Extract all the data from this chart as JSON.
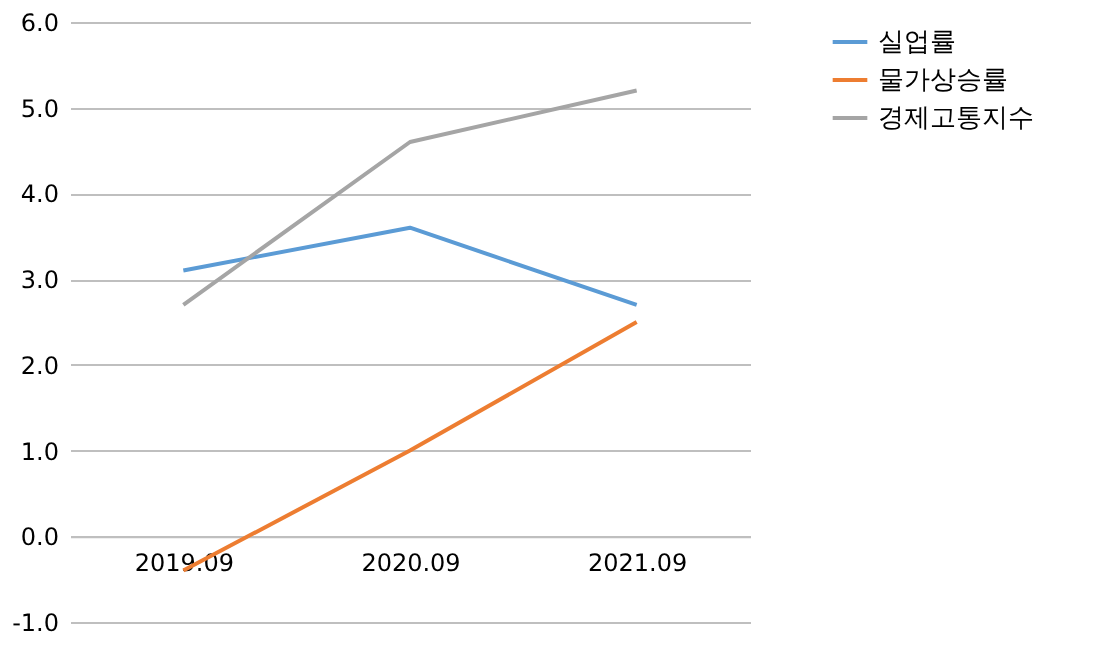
{
  "chart_data": {
    "type": "line",
    "categories": [
      "2019.09",
      "2020.09",
      "2021.09"
    ],
    "series": [
      {
        "name": "실업률",
        "color": "#5b9bd5",
        "values": [
          3.1,
          3.6,
          2.7
        ]
      },
      {
        "name": "물가상승률",
        "color": "#ed7d31",
        "values": [
          -0.4,
          1.0,
          2.5
        ]
      },
      {
        "name": "경제고통지수",
        "color": "#a5a5a5",
        "values": [
          2.7,
          4.6,
          5.2
        ]
      }
    ],
    "ylim": [
      -1,
      6
    ],
    "yticks": [
      {
        "value": -1,
        "label": "-1.0"
      },
      {
        "value": 0,
        "label": "0.0"
      },
      {
        "value": 1,
        "label": "1.0"
      },
      {
        "value": 2,
        "label": "2.0"
      },
      {
        "value": 3,
        "label": "3.0"
      },
      {
        "value": 4,
        "label": "4.0"
      },
      {
        "value": 5,
        "label": "5.0"
      },
      {
        "value": 6,
        "label": "6.0"
      }
    ],
    "grid": "y",
    "legend": "right",
    "marker": "none",
    "line_style": "solid"
  }
}
